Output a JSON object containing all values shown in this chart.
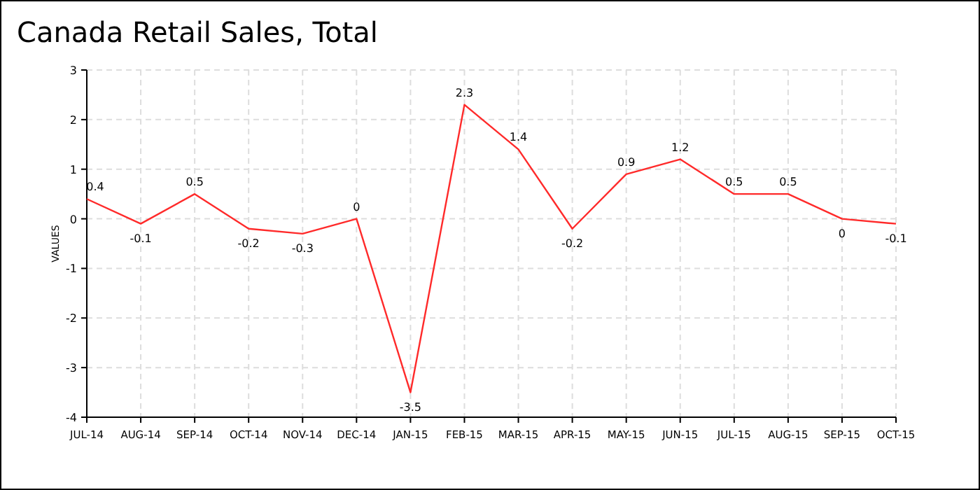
{
  "chart_data": {
    "type": "line",
    "title": "Canada Retail Sales, Total",
    "ylabel": "VALUES",
    "categories": [
      "JUL-14",
      "AUG-14",
      "SEP-14",
      "OCT-14",
      "NOV-14",
      "DEC-14",
      "JAN-15",
      "FEB-15",
      "MAR-15",
      "APR-15",
      "MAY-15",
      "JUN-15",
      "JUL-15",
      "AUG-15",
      "SEP-15",
      "OCT-15"
    ],
    "series": [
      {
        "color": "#ff2a2a",
        "values": [
          0.4,
          -0.1,
          0.5,
          -0.2,
          -0.3,
          0,
          -3.5,
          2.3,
          1.4,
          -0.2,
          0.9,
          1.2,
          0.5,
          0.5,
          0,
          -0.1
        ]
      }
    ],
    "ylim": [
      -4,
      3
    ],
    "yticks": [
      -4,
      -3,
      -2,
      -1,
      0,
      1,
      2,
      3
    ],
    "grid": true,
    "data_labels": true,
    "marker": "none",
    "line_style": "solid"
  }
}
